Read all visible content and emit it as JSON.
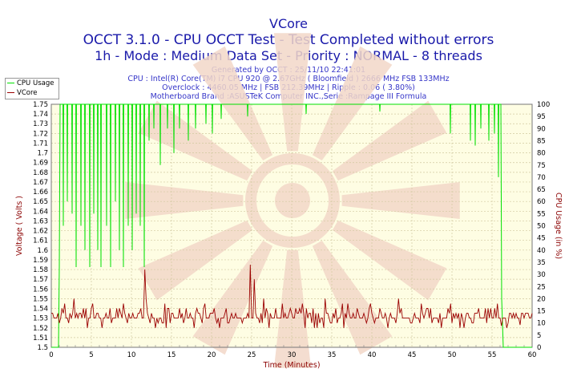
{
  "chart_data": {
    "type": "line",
    "title": "VCore",
    "subtitle_line1": "OCCT 3.1.0 - CPU OCCT Test - Test Completed without errors",
    "subtitle_line2": "1h - Mode : Medium Data Set - Priority : NORMAL - 8 threads",
    "info": [
      "Generated by OCCT : 25/11/10 22:41:01",
      "CPU : Intel(R) Core(TM) i7 CPU 920 @ 2.67GHz ( Bloomfield ) 2666 MHz FSB 133MHz",
      "Overclock : 4460.05 MHz | FSB 212.39MHz | Ripple : 0.06 ( 3.80%)",
      "Motherboard Brand :ASUSTeK Computer INC.,Serie :Rampage III Formula"
    ],
    "xlabel": "Time (Minutes)",
    "ylabel": "Voltage ( Volts )",
    "y2label": "CPU Usage (in %)",
    "xlim": [
      0,
      60
    ],
    "ylim": [
      1.5,
      1.75
    ],
    "y2lim": [
      0,
      100
    ],
    "x_ticks": [
      "0",
      "5",
      "10",
      "15",
      "20",
      "25",
      "30",
      "35",
      "40",
      "45",
      "50",
      "55",
      "60"
    ],
    "y_ticks": [
      "1.5",
      "1.51",
      "1.52",
      "1.53",
      "1.54",
      "1.55",
      "1.56",
      "1.57",
      "1.58",
      "1.59",
      "1.6",
      "1.61",
      "1.62",
      "1.63",
      "1.64",
      "1.65",
      "1.66",
      "1.67",
      "1.68",
      "1.69",
      "1.7",
      "1.71",
      "1.72",
      "1.73",
      "1.74",
      "1.75"
    ],
    "y2_ticks": [
      "0",
      "5",
      "10",
      "15",
      "20",
      "25",
      "30",
      "35",
      "40",
      "45",
      "50",
      "55",
      "60",
      "65",
      "70",
      "75",
      "80",
      "85",
      "90",
      "95",
      "100"
    ],
    "grid": true,
    "legend_position": "top-left",
    "series": [
      {
        "name": "CPU Usage",
        "axis": "right",
        "color": "#00e000",
        "baseline": 100,
        "x": [
          0,
          0.9,
          1.0,
          1.1,
          56.1,
          56.2,
          56.4,
          60
        ],
        "y": [
          0,
          0,
          33,
          100,
          100,
          20,
          0,
          0
        ],
        "dips": [
          [
            1.5,
            50
          ],
          [
            2.0,
            60
          ],
          [
            2.6,
            55
          ],
          [
            3.1,
            33
          ],
          [
            3.7,
            50
          ],
          [
            4.2,
            40
          ],
          [
            4.8,
            33
          ],
          [
            5.3,
            55
          ],
          [
            5.8,
            40
          ],
          [
            6.2,
            33
          ],
          [
            6.9,
            50
          ],
          [
            7.4,
            33
          ],
          [
            8.0,
            60
          ],
          [
            8.5,
            40
          ],
          [
            9.0,
            33
          ],
          [
            9.6,
            50
          ],
          [
            10.1,
            40
          ],
          [
            10.6,
            55
          ],
          [
            11.1,
            50
          ],
          [
            11.6,
            33
          ],
          [
            12.2,
            85
          ],
          [
            12.8,
            90
          ],
          [
            13.6,
            75
          ],
          [
            14.5,
            90
          ],
          [
            15.3,
            80
          ],
          [
            16.0,
            90
          ],
          [
            17.1,
            85
          ],
          [
            18.0,
            90
          ],
          [
            19.3,
            92
          ],
          [
            20.1,
            88
          ],
          [
            21.2,
            94
          ],
          [
            24.5,
            95
          ],
          [
            31.8,
            96
          ],
          [
            41.0,
            97
          ],
          [
            49.8,
            88
          ],
          [
            52.3,
            85
          ],
          [
            52.9,
            83
          ],
          [
            53.6,
            90
          ],
          [
            54.6,
            85
          ],
          [
            55.3,
            88
          ],
          [
            55.8,
            70
          ]
        ]
      },
      {
        "name": "VCore",
        "axis": "left",
        "color": "#9b0000",
        "base": 1.53,
        "spikes": [
          [
            1.6,
            1.545
          ],
          [
            2.8,
            1.55
          ],
          [
            4.0,
            1.54
          ],
          [
            5.2,
            1.545
          ],
          [
            7.3,
            1.54
          ],
          [
            9.0,
            1.545
          ],
          [
            11.6,
            1.58
          ],
          [
            11.9,
            1.55
          ],
          [
            14.2,
            1.545
          ],
          [
            16.0,
            1.54
          ],
          [
            19.2,
            1.545
          ],
          [
            21.8,
            1.54
          ],
          [
            24.8,
            1.585
          ],
          [
            25.4,
            1.57
          ],
          [
            26.5,
            1.55
          ],
          [
            28.9,
            1.545
          ],
          [
            31.3,
            1.545
          ],
          [
            34.2,
            1.55
          ],
          [
            36.3,
            1.545
          ],
          [
            37.0,
            1.545
          ],
          [
            39.8,
            1.545
          ],
          [
            43.3,
            1.55
          ],
          [
            46.2,
            1.545
          ],
          [
            49.8,
            1.545
          ],
          [
            53.3,
            1.54
          ],
          [
            55.6,
            1.545
          ]
        ],
        "dips": [
          [
            1.0,
            1.525
          ],
          [
            13.0,
            1.52
          ],
          [
            21.0,
            1.52
          ],
          [
            27.2,
            1.52
          ],
          [
            32.8,
            1.52
          ],
          [
            42.0,
            1.52
          ],
          [
            51.5,
            1.52
          ],
          [
            56.2,
            1.522
          ],
          [
            58.5,
            1.523
          ]
        ]
      }
    ]
  },
  "colors": {
    "plot_bg": "#fefde3",
    "grid": "#d2c9a0",
    "title": "#1a1aaa",
    "info": "#3535c8",
    "axis_label": "#8b0000"
  }
}
